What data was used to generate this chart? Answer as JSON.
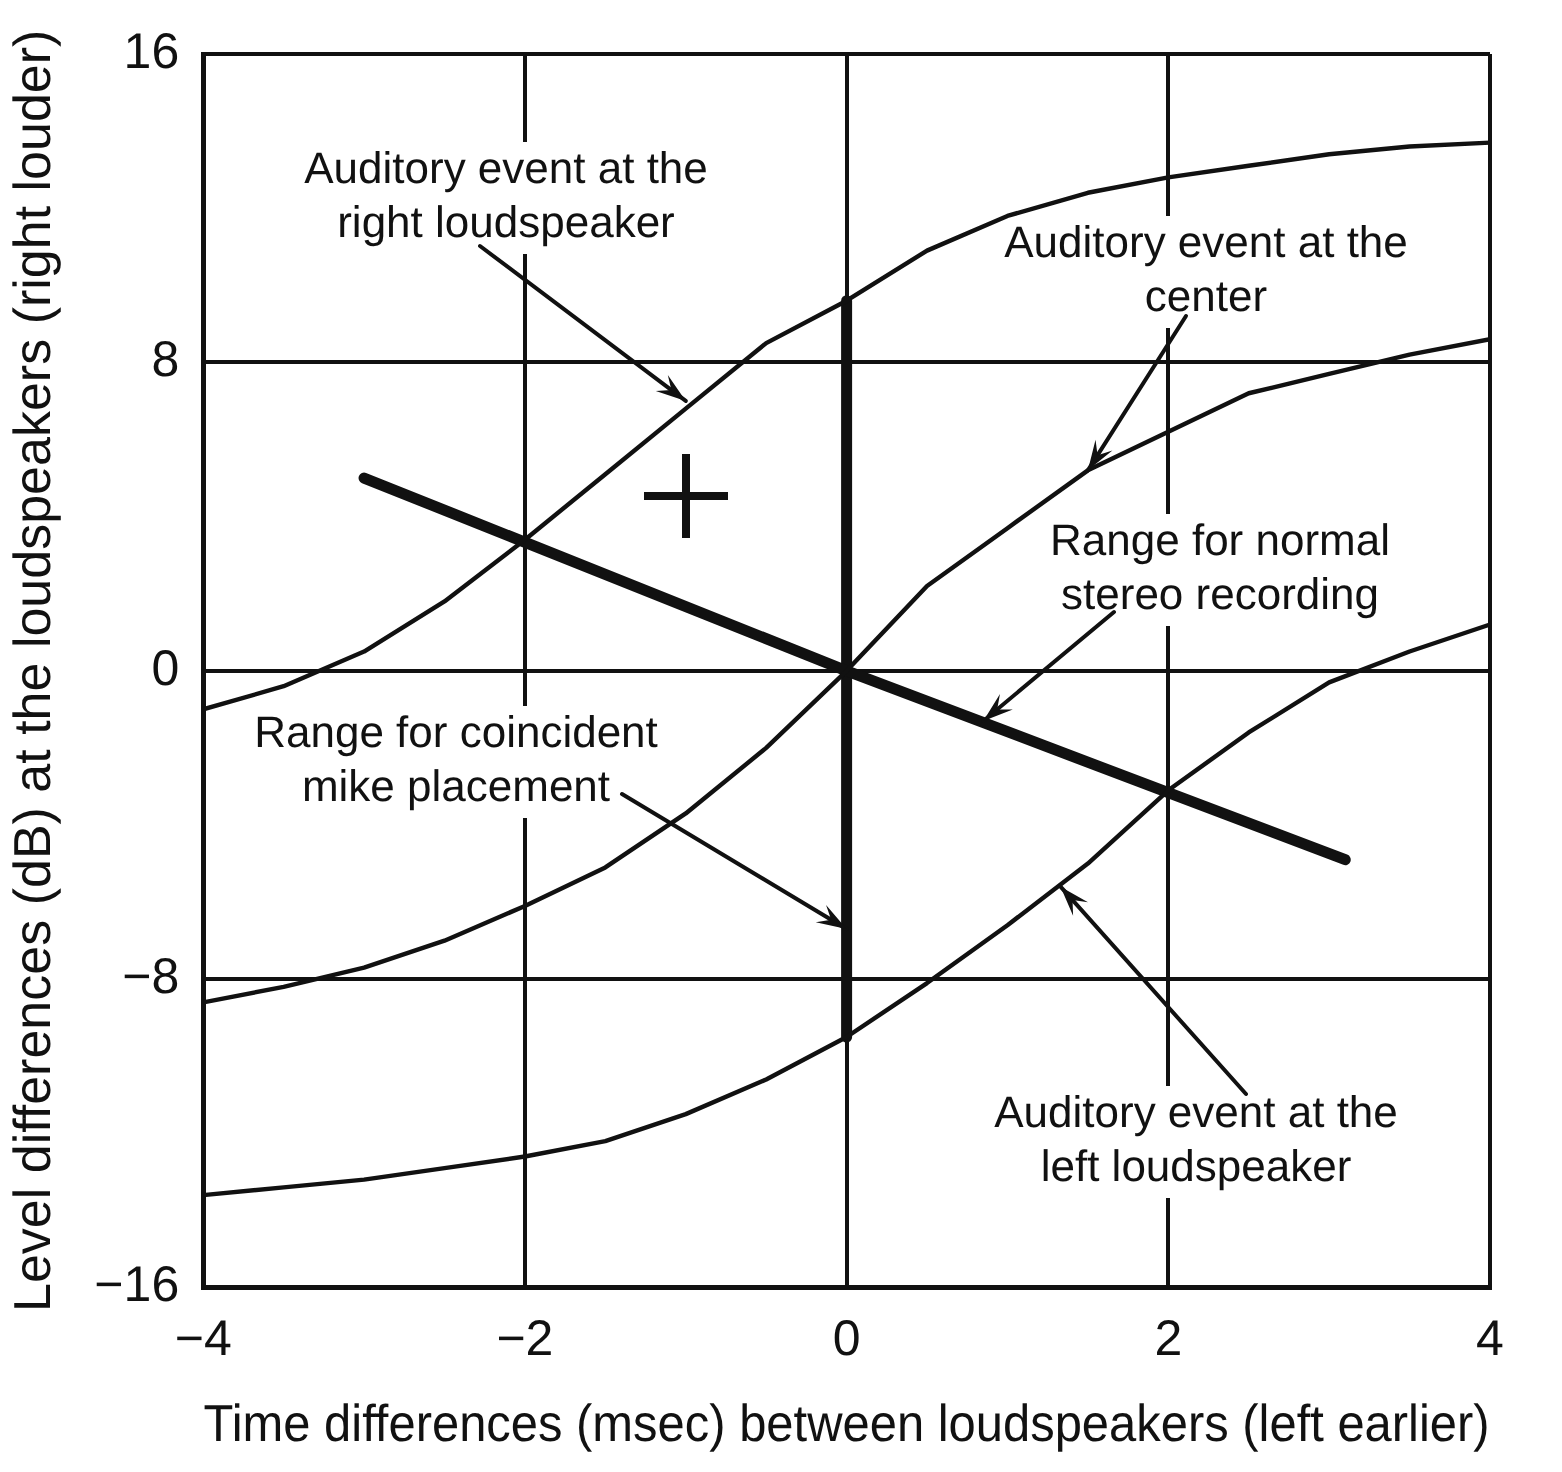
{
  "chart_data": {
    "type": "line",
    "xlabel": "Time differences (msec) between loudspeakers (left earlier)",
    "ylabel": "Level differences (dB) at the loudspeakers (right louder)",
    "xlim": [
      -4,
      4
    ],
    "xticks": [
      -4,
      -2,
      0,
      2,
      4
    ],
    "ylim": [
      -16,
      16
    ],
    "yticks": [
      -16,
      -8,
      0,
      8,
      16
    ],
    "grid": true,
    "legend": false,
    "marker": "none",
    "line_style": "solid",
    "series": [
      {
        "color": "#111111",
        "x": [
          -4,
          -3.5,
          -3,
          -2.5,
          -2,
          -1.5,
          -1,
          -0.5,
          0,
          0.5,
          1,
          1.5,
          2,
          2.5,
          3,
          3.5,
          4
        ],
        "values": [
          -1,
          -0.4,
          0.5,
          1.8,
          3.4,
          5.1,
          6.8,
          8.5,
          9.6,
          10.9,
          11.8,
          12.4,
          12.8,
          13.1,
          13.4,
          13.6,
          13.7
        ]
      },
      {
        "color": "#111111",
        "x": [
          -4,
          -3.5,
          -3,
          -2.5,
          -2,
          -1.5,
          -1,
          -0.5,
          0,
          0.5,
          1,
          1.5,
          2,
          2.5,
          3,
          3.5,
          4
        ],
        "values": [
          -8.6,
          -8.2,
          -7.7,
          -7,
          -6.1,
          -5.1,
          -3.7,
          -2,
          0,
          2.2,
          3.7,
          5.2,
          6.2,
          7.2,
          7.7,
          8.2,
          8.6
        ]
      },
      {
        "color": "#111111",
        "x": [
          -4,
          -3.5,
          -3,
          -2.5,
          -2,
          -1.5,
          -1,
          -0.5,
          0,
          0.5,
          1,
          1.5,
          2,
          2.5,
          3,
          3.5,
          4
        ],
        "values": [
          -13.6,
          -13.4,
          -13.2,
          -12.9,
          -12.6,
          -12.2,
          -11.5,
          -10.6,
          -9.5,
          -8.1,
          -6.6,
          -5,
          -3.1,
          -1.6,
          -0.3,
          0.5,
          1.2
        ]
      },
      {
        "color": "#111111",
        "x": [
          -3,
          0,
          3.1
        ],
        "values": [
          5,
          0,
          -4.9
        ]
      },
      {
        "color": "#111111",
        "x": [
          0,
          0
        ],
        "values": [
          -9.5,
          9.6
        ]
      }
    ],
    "annotations": [
      {
        "text": "Auditory event at the right loudspeaker",
        "x": -1,
        "y": 7
      },
      {
        "text": "Auditory event at the center",
        "x": 1.5,
        "y": 5.2
      },
      {
        "text": "Range for normal stereo recording",
        "x": 0.85,
        "y": -1.3
      },
      {
        "text": "Range for coincident mike placement",
        "x": 0,
        "y": -6.7
      },
      {
        "text": "Auditory event at the left loudspeaker",
        "x": 1.33,
        "y": -5.6
      }
    ]
  }
}
